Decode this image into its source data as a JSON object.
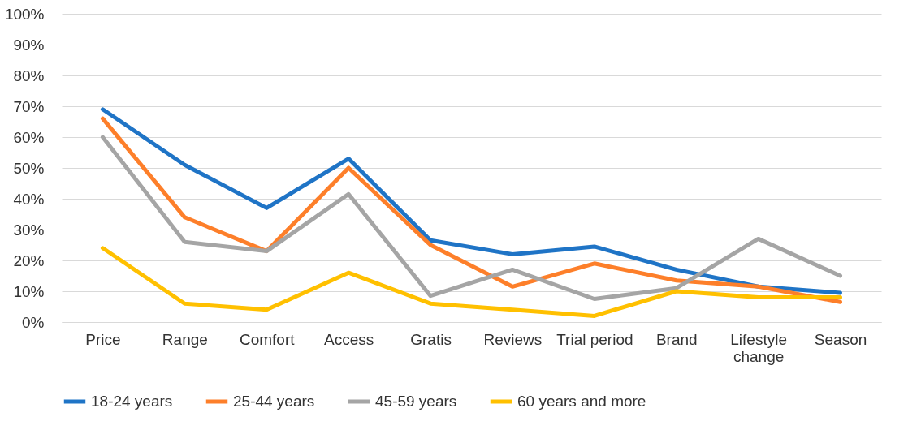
{
  "chart_data": {
    "type": "line",
    "categories": [
      "Price",
      "Range",
      "Comfort",
      "Access",
      "Gratis",
      "Reviews",
      "Trial period",
      "Brand",
      "Lifestyle change",
      "Season"
    ],
    "series": [
      {
        "name": "18-24 years",
        "color": "#1f74c6",
        "values": [
          69,
          51,
          37,
          53,
          26.5,
          22,
          24.5,
          17,
          11.5,
          9.5
        ]
      },
      {
        "name": "25-44 years",
        "color": "#fd7f2a",
        "values": [
          66,
          34,
          23,
          50,
          25,
          11.5,
          19,
          13.5,
          11.5,
          6.5
        ]
      },
      {
        "name": "45-59 years",
        "color": "#a5a5a5",
        "values": [
          60,
          26,
          23,
          41.5,
          8.5,
          17,
          7.5,
          11,
          27,
          15
        ]
      },
      {
        "name": "60 years and more",
        "color": "#ffc000",
        "values": [
          24,
          6,
          4,
          16,
          6,
          4,
          2,
          10,
          8,
          8
        ]
      }
    ],
    "ylim": [
      0,
      100
    ],
    "yticks": [
      {
        "value": 0,
        "label": "0%"
      },
      {
        "value": 10,
        "label": "10%"
      },
      {
        "value": 20,
        "label": "20%"
      },
      {
        "value": 30,
        "label": "30%"
      },
      {
        "value": 40,
        "label": "40%"
      },
      {
        "value": 50,
        "label": "50%"
      },
      {
        "value": 60,
        "label": "60%"
      },
      {
        "value": 70,
        "label": "70%"
      },
      {
        "value": 80,
        "label": "80%"
      },
      {
        "value": 90,
        "label": "90%"
      },
      {
        "value": 100,
        "label": "100%"
      }
    ],
    "grid": "y",
    "legend": "bottom",
    "marker": "none",
    "line_style": "solid"
  }
}
